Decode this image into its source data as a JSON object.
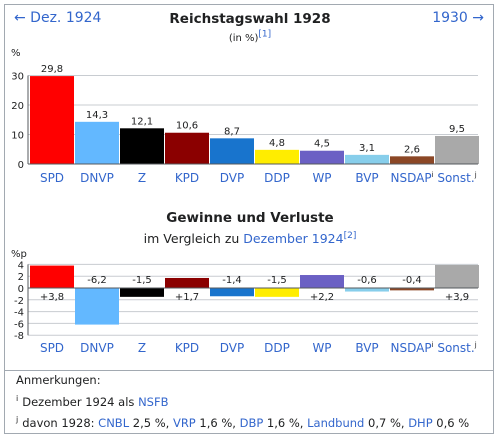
{
  "header": {
    "prev_label": "← Dez. 1924",
    "next_label": "1930 →",
    "title": "Reichstagswahl 1928",
    "subtitle": "(in %)",
    "subtitle_ref": "[1]"
  },
  "gains": {
    "title": "Gewinne und Verluste",
    "subtitle_prefix": "im Vergleich zu ",
    "subtitle_link": "Dezember 1924",
    "subtitle_ref": "[2]"
  },
  "chart_data": [
    {
      "type": "bar",
      "title": "Reichstagswahl 1928",
      "ylabel": "%",
      "ylim": [
        0,
        30
      ],
      "yticks": [
        0,
        10,
        20,
        30
      ],
      "categories": [
        "SPD",
        "DNVP",
        "Z",
        "KPD",
        "DVP",
        "DDP",
        "WP",
        "BVP",
        "NSDAP",
        "Sonst."
      ],
      "category_refs": [
        "",
        "",
        "",
        "",
        "",
        "",
        "",
        "",
        "i",
        "j"
      ],
      "values": [
        29.8,
        14.3,
        12.1,
        10.6,
        8.7,
        4.8,
        4.5,
        3.1,
        2.6,
        9.5
      ],
      "value_labels": [
        "29,8",
        "14,3",
        "12,1",
        "10,6",
        "8,7",
        "4,8",
        "4,5",
        "3,1",
        "2,6",
        "9,5"
      ],
      "colors": [
        "#ff0000",
        "#63b8ff",
        "#000000",
        "#8b0000",
        "#1874cd",
        "#ffed00",
        "#6b60c4",
        "#87ceeb",
        "#8b4726",
        "#a9a9a9"
      ],
      "grid": true
    },
    {
      "type": "bar",
      "title": "Gewinne und Verluste",
      "ylabel": "%p",
      "ylim": [
        -8,
        4
      ],
      "yticks": [
        4,
        2,
        0,
        -2,
        -4,
        -6,
        -8
      ],
      "ytick_labels": [
        "4",
        "2",
        "0",
        "-2",
        "-4",
        "-6",
        "-8"
      ],
      "categories": [
        "SPD",
        "DNVP",
        "Z",
        "KPD",
        "DVP",
        "DDP",
        "WP",
        "BVP",
        "NSDAP",
        "Sonst."
      ],
      "category_refs": [
        "",
        "",
        "",
        "",
        "",
        "",
        "",
        "",
        "i",
        "j"
      ],
      "values": [
        3.8,
        -6.2,
        -1.5,
        1.7,
        -1.4,
        -1.5,
        2.2,
        -0.6,
        -0.4,
        3.9
      ],
      "value_labels": [
        "+3,8",
        "-6,2",
        "-1,5",
        "+1,7",
        "-1,4",
        "-1,5",
        "+2,2",
        "-0,6",
        "-0,4",
        "+3,9"
      ],
      "colors": [
        "#ff0000",
        "#63b8ff",
        "#000000",
        "#8b0000",
        "#1874cd",
        "#ffed00",
        "#6b60c4",
        "#87ceeb",
        "#8b4726",
        "#a9a9a9"
      ],
      "grid": true
    }
  ],
  "notes": {
    "heading": "Anmerkungen:",
    "items": [
      {
        "marker": "i",
        "parts": [
          {
            "text": "Dezember 1924 als ",
            "link": false
          },
          {
            "text": "NSFB",
            "link": true
          }
        ]
      },
      {
        "marker": "j",
        "parts": [
          {
            "text": "davon 1928: ",
            "link": false
          },
          {
            "text": "CNBL",
            "link": true
          },
          {
            "text": " 2,5 %, ",
            "link": false
          },
          {
            "text": "VRP",
            "link": true
          },
          {
            "text": " 1,6 %, ",
            "link": false
          },
          {
            "text": "DBP",
            "link": true
          },
          {
            "text": " 1,6 %, ",
            "link": false
          },
          {
            "text": "Landbund",
            "link": true
          },
          {
            "text": " 0,7 %, ",
            "link": false
          },
          {
            "text": "DHP",
            "link": true
          },
          {
            "text": " 0,6 %",
            "link": false
          }
        ]
      }
    ]
  }
}
